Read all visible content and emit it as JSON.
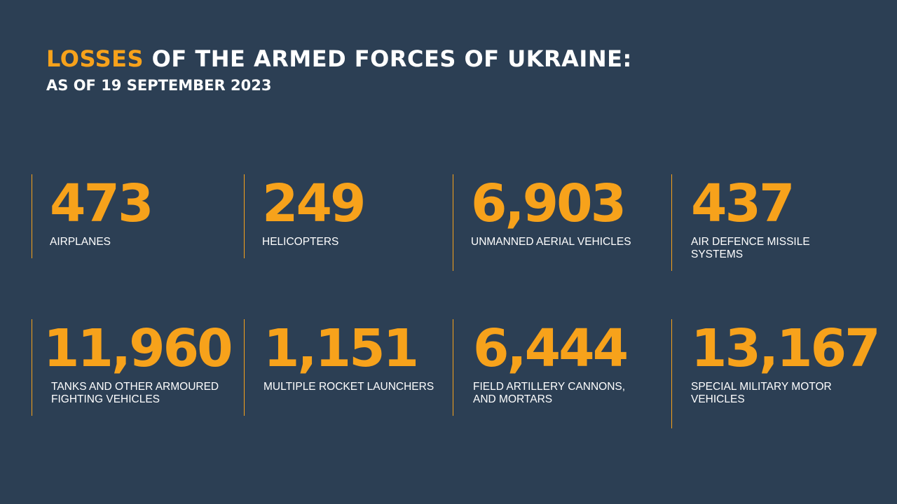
{
  "header": {
    "title_accent": "LOSSES",
    "title_rest": " OF THE ARMED FORCES OF UKRAINE:",
    "subtitle": "AS OF 19 SEPTEMBER 2023"
  },
  "colors": {
    "background": "#2c3f54",
    "accent": "#f7a21b",
    "text": "#ffffff"
  },
  "stats": [
    {
      "value": "473",
      "label": "AIRPLANES"
    },
    {
      "value": "249",
      "label": "HELICOPTERS"
    },
    {
      "value": "6,903",
      "label": "UNMANNED AERIAL VEHICLES"
    },
    {
      "value": "437",
      "label": "AIR DEFENCE MISSILE SYSTEMS"
    },
    {
      "value": "11,960",
      "label": "TANKS AND OTHER ARMOURED FIGHTING VEHICLES"
    },
    {
      "value": "1,151",
      "label": "MULTIPLE ROCKET LAUNCHERS"
    },
    {
      "value": "6,444",
      "label": "FIELD ARTILLERY CANNONS, AND MORTARS"
    },
    {
      "value": "13,167",
      "label": "SPECIAL MILITARY MOTOR VEHICLES"
    }
  ]
}
